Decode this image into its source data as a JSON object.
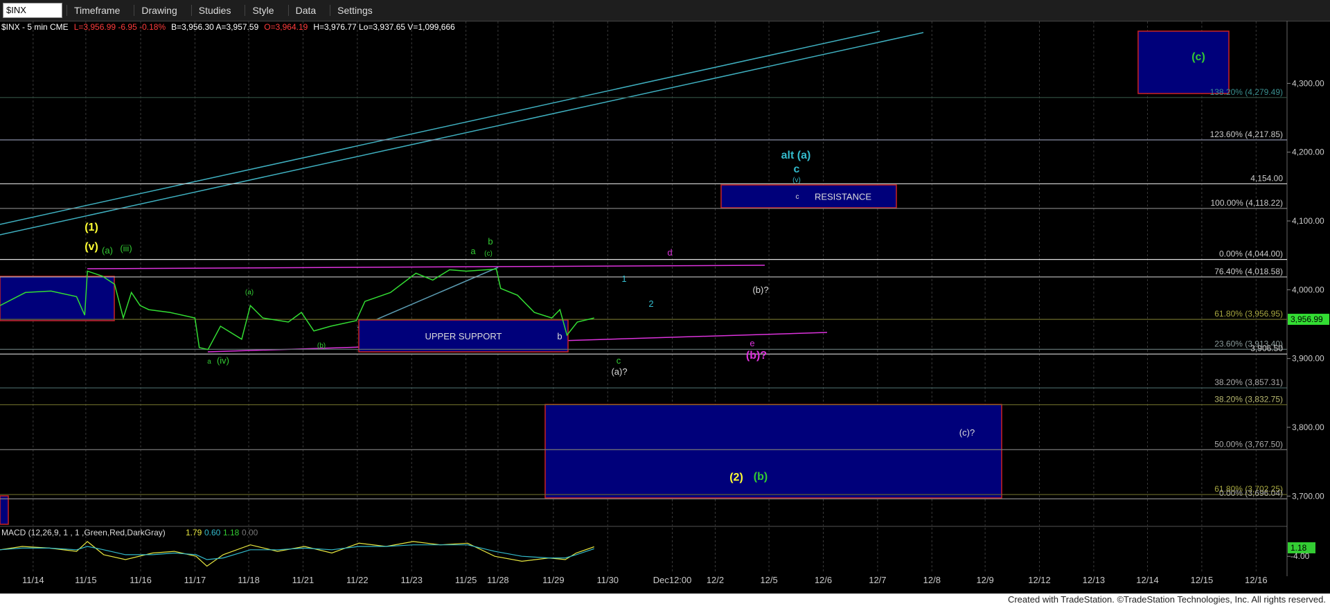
{
  "toolbar": {
    "symbol": "$INX",
    "menus": [
      "Timeframe",
      "Drawing",
      "Studies",
      "Style",
      "Data",
      "Settings"
    ]
  },
  "header": [
    {
      "text": "$INX - 5 min  CME",
      "color": "#ffffff"
    },
    {
      "text": "L=3,956.99 -6.95 -0.18%",
      "color": "#ff3b3b"
    },
    {
      "text": "B=3,956.30 A=3,957.59",
      "color": "#ffffff"
    },
    {
      "text": "O=3,964.19",
      "color": "#ff3b3b"
    },
    {
      "text": "H=3,976.77 Lo=3,937.65 V=1,099,666",
      "color": "#ffffff"
    }
  ],
  "chart_data": {
    "type": "line",
    "x": [
      -0.61,
      -0.14,
      0.33,
      0.8,
      0.95,
      1.0,
      1.27,
      1.5,
      1.66,
      1.81,
      1.97,
      2.13,
      2.52,
      2.98,
      3.06,
      3.22,
      3.45,
      3.84,
      4.0,
      4.23,
      4.7,
      4.94,
      5.17,
      5.48,
      5.95,
      6.11,
      6.58,
      7.05,
      7.36,
      7.67,
      7.98,
      8.53,
      8.61,
      8.92,
      9.23,
      9.55,
      9.7,
      9.83,
      10.02,
      10.33
    ],
    "series": [
      {
        "color": "#33dd33",
        "values": [
          3977,
          3996,
          3998,
          3990,
          3963,
          4027,
          4020,
          4008,
          3959,
          3996,
          3977,
          3971,
          3967,
          3959,
          3916,
          3913,
          3947,
          3928,
          3977,
          3959,
          3953,
          3967,
          3940,
          3947,
          3955,
          3983,
          3996,
          4024,
          4014,
          4029,
          4027,
          4030,
          4002,
          3992,
          3967,
          3959,
          3971,
          3934,
          3953,
          3959
        ]
      }
    ],
    "xlim": [
      -0.61,
      23.09
    ],
    "ylim": [
      3657,
      4390
    ],
    "grid": true,
    "xticks": [
      {
        "value": 0,
        "label": "11/14"
      },
      {
        "value": 0.97,
        "label": "11/15"
      },
      {
        "value": 1.98,
        "label": "11/16"
      },
      {
        "value": 2.98,
        "label": "11/17"
      },
      {
        "value": 3.97,
        "label": "11/18"
      },
      {
        "value": 4.97,
        "label": "11/21"
      },
      {
        "value": 5.97,
        "label": "11/22"
      },
      {
        "value": 6.97,
        "label": "11/23"
      },
      {
        "value": 7.97,
        "label": "11/25"
      },
      {
        "value": 8.56,
        "label": "11/28"
      },
      {
        "value": 9.58,
        "label": "11/29"
      },
      {
        "value": 10.58,
        "label": "11/30"
      },
      {
        "value": 11.77,
        "label": "Dec12:00"
      },
      {
        "value": 12.56,
        "label": "12/2"
      },
      {
        "value": 13.55,
        "label": "12/5"
      },
      {
        "value": 14.55,
        "label": "12/6"
      },
      {
        "value": 15.55,
        "label": "12/7"
      },
      {
        "value": 16.55,
        "label": "12/8"
      },
      {
        "value": 17.53,
        "label": "12/9"
      },
      {
        "value": 18.53,
        "label": "12/12"
      },
      {
        "value": 19.53,
        "label": "12/13"
      },
      {
        "value": 20.52,
        "label": "12/14"
      },
      {
        "value": 21.52,
        "label": "12/15"
      },
      {
        "value": 22.52,
        "label": "12/16"
      }
    ],
    "yticks": [
      {
        "value": 3700,
        "label": "3,700.00"
      },
      {
        "value": 3800,
        "label": "3,800.00"
      },
      {
        "value": 3900,
        "label": "3,900.00"
      },
      {
        "value": 4000,
        "label": "4,000.00"
      },
      {
        "value": 4100,
        "label": "4,100.00"
      },
      {
        "value": 4200,
        "label": "4,200.00"
      },
      {
        "value": 4300,
        "label": "4,300.00"
      }
    ],
    "last": {
      "value": 3956.99,
      "label": "3,956.99",
      "color": "#33dd33"
    },
    "levels": [
      {
        "value": 4279.49,
        "label": "138.20% (4,279.49)",
        "color": "#3a8f8f",
        "line": "#2e4a3e"
      },
      {
        "value": 4217.85,
        "label": "123.60% (4,217.85)",
        "color": "#cccccc",
        "line": "#8a8fa8"
      },
      {
        "value": 4154,
        "label": "4,154.00",
        "color": "#cccccc",
        "line": "#c8c8c8"
      },
      {
        "value": 4118.22,
        "label": "100.00% (4,118.22)",
        "color": "#cccccc",
        "line": "#8a8a8a"
      },
      {
        "value": 4044,
        "label": "0.00% (4,044.00)",
        "color": "#cccccc",
        "line": "#e0e0e0"
      },
      {
        "value": 4018.58,
        "label": "76.40% (4,018.58)",
        "color": "#cccccc",
        "line": "#b0b0b0"
      },
      {
        "value": 3956.95,
        "label": "61.80% (3,956.95)",
        "color": "#a8a840",
        "line": "#6b6b2a"
      },
      {
        "value": 3913.4,
        "label": "23.60% (3,913.40)",
        "color": "#8a9a9a",
        "line": "#607070"
      },
      {
        "value": 3906.5,
        "label": "3,906.50",
        "color": "#cccccc",
        "line": "#d8d8d8"
      },
      {
        "value": 3857.31,
        "label": "38.20% (3,857.31)",
        "color": "#aaaaaa",
        "line": "#4a6a6a"
      },
      {
        "value": 3832.75,
        "label": "38.20% (3,832.75)",
        "color": "#b8b870",
        "line": "#6b6b2a"
      },
      {
        "value": 3767.5,
        "label": "50.00% (3,767.50)",
        "color": "#aaaaaa",
        "line": "#777777"
      },
      {
        "value": 3702.25,
        "label": "61.80% (3,702.25)",
        "color": "#a8a840",
        "line": "#6b6b2a"
      },
      {
        "value": 3696.04,
        "label": "0.00% (3,696.04)",
        "color": "#aaaaaa",
        "line": "#888888"
      }
    ],
    "zones": [
      {
        "label": "UPPER SUPPORT"
      },
      {
        "label": "RESISTANCE"
      }
    ],
    "annotations": [
      {
        "text": "(1)",
        "color": "#ffff33"
      },
      {
        "text": "(v)",
        "color": "#ffff33"
      },
      {
        "text": "(a)",
        "color": "#33cc33"
      },
      {
        "text": "(iii)",
        "color": "#33cc33"
      },
      {
        "text": "a",
        "color": "#33cc33"
      },
      {
        "text": "(iv)",
        "color": "#33cc33"
      },
      {
        "text": "(a)",
        "color": "#33cc33"
      },
      {
        "text": "(b)",
        "color": "#33cc33"
      },
      {
        "text": "a",
        "color": "#33cc33"
      },
      {
        "text": "b",
        "color": "#33cc33"
      },
      {
        "text": "(c)",
        "color": "#33cc33"
      },
      {
        "text": "b",
        "color": "#dddddd"
      },
      {
        "text": "c",
        "color": "#33cc33"
      },
      {
        "text": "(a)?",
        "color": "#dddddd"
      },
      {
        "text": "1",
        "color": "#33bbcc"
      },
      {
        "text": "2",
        "color": "#33bbcc"
      },
      {
        "text": "d",
        "color": "#dd33dd"
      },
      {
        "text": "(b)?",
        "color": "#dddddd"
      },
      {
        "text": "e",
        "color": "#dd33dd"
      },
      {
        "text": "(b)?",
        "color": "#dd33dd"
      },
      {
        "text": "alt (a)",
        "color": "#33bbcc"
      },
      {
        "text": "c",
        "color": "#33bbcc"
      },
      {
        "text": "(v)",
        "color": "#33bbcc"
      },
      {
        "text": "c",
        "color": "#dddddd"
      },
      {
        "text": "(c)?",
        "color": "#dddddd"
      },
      {
        "text": "(2)",
        "color": "#ffff33"
      },
      {
        "text": "(b)",
        "color": "#33cc33"
      },
      {
        "text": "(c)",
        "color": "#33cc33"
      }
    ],
    "macd": {
      "label": "MACD (12,26,9, 1 , 1 ,Green,Red,DarkGray)",
      "readouts": [
        {
          "text": "1.79",
          "color": "#e8e840"
        },
        {
          "text": "0.60",
          "color": "#33bbcc"
        },
        {
          "text": "1.18",
          "color": "#33cc33"
        },
        {
          "text": "0.00",
          "color": "#777777"
        }
      ],
      "ylim": [
        -13.6,
        13.4
      ],
      "yticks": [
        {
          "value": 1.18,
          "label": "1.18"
        },
        {
          "value": -4,
          "label": "-4.00"
        }
      ],
      "x": [
        -0.61,
        -0.2,
        0.3,
        0.8,
        1.0,
        1.3,
        1.7,
        2.2,
        2.6,
        3.0,
        3.2,
        3.5,
        4.0,
        4.5,
        5.0,
        5.5,
        6.0,
        6.5,
        7.0,
        7.5,
        8.0,
        8.5,
        9.0,
        9.5,
        9.8,
        10.0,
        10.33
      ],
      "series": [
        {
          "color": "#e8e840",
          "values": [
            0,
            2,
            1,
            -1,
            5,
            -3,
            -6,
            -2,
            -1,
            -4,
            -10,
            -3,
            3,
            -1,
            2,
            -2,
            4,
            2,
            5,
            3,
            4,
            -4,
            -7,
            -5,
            -6,
            -2,
            1.79
          ]
        },
        {
          "color": "#33bbcc",
          "values": [
            0,
            1,
            1,
            0,
            2,
            0,
            -3,
            -3,
            -2,
            -3,
            -6,
            -5,
            0,
            0,
            1,
            0,
            2,
            2,
            3,
            3,
            3,
            -1,
            -4,
            -5,
            -5,
            -3,
            0.6
          ]
        }
      ]
    }
  },
  "footer": "Created with TradeStation. ©TradeStation Technologies, Inc. All rights reserved."
}
